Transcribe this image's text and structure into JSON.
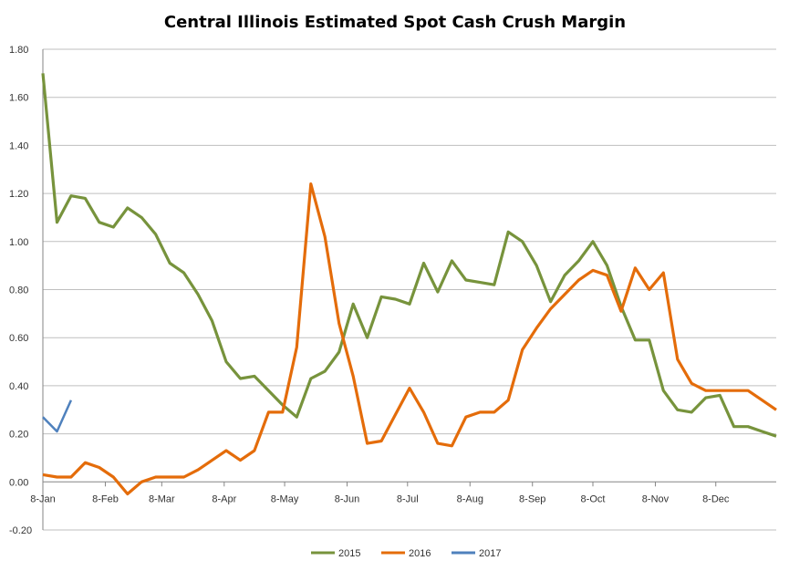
{
  "chart_data": {
    "type": "line",
    "title": "Central Illinois Estimated Spot Cash Crush Margin",
    "xlabel": "",
    "ylabel": "",
    "ylim": [
      -0.2,
      1.8
    ],
    "yticks": [
      "-0.20",
      "0.00",
      "0.20",
      "0.40",
      "0.60",
      "0.80",
      "1.00",
      "1.20",
      "1.40",
      "1.60",
      "1.80"
    ],
    "xticks": [
      {
        "label": "8-Jan",
        "day": 0
      },
      {
        "label": "8-Feb",
        "day": 31
      },
      {
        "label": "8-Mar",
        "day": 59
      },
      {
        "label": "8-Apr",
        "day": 90
      },
      {
        "label": "8-May",
        "day": 120
      },
      {
        "label": "8-Jun",
        "day": 151
      },
      {
        "label": "8-Jul",
        "day": 181
      },
      {
        "label": "8-Aug",
        "day": 212
      },
      {
        "label": "8-Sep",
        "day": 243
      },
      {
        "label": "8-Oct",
        "day": 273
      },
      {
        "label": "8-Nov",
        "day": 304
      },
      {
        "label": "8-Dec",
        "day": 334
      }
    ],
    "x_unit": "weeks since 8-Jan",
    "x_max_weeks": 52,
    "grid": true,
    "legend_position": "bottom",
    "series": [
      {
        "name": "2015",
        "color": "#77933C",
        "values": [
          1.7,
          1.08,
          1.19,
          1.18,
          1.08,
          1.06,
          1.14,
          1.1,
          1.03,
          0.91,
          0.87,
          0.78,
          0.67,
          0.5,
          0.43,
          0.44,
          0.38,
          0.32,
          0.27,
          0.43,
          0.46,
          0.54,
          0.74,
          0.6,
          0.77,
          0.76,
          0.74,
          0.91,
          0.79,
          0.92,
          0.84,
          0.83,
          0.82,
          1.04,
          1.0,
          0.9,
          0.75,
          0.86,
          0.92,
          1.0,
          0.9,
          0.73,
          0.59,
          0.59,
          0.38,
          0.3,
          0.29,
          0.35,
          0.36,
          0.23,
          0.23,
          0.21,
          0.19
        ]
      },
      {
        "name": "2016",
        "color": "#E46C0A",
        "values": [
          0.03,
          0.02,
          0.02,
          0.08,
          0.06,
          0.02,
          -0.05,
          0.0,
          0.02,
          0.02,
          0.02,
          0.05,
          0.09,
          0.13,
          0.09,
          0.13,
          0.29,
          0.29,
          0.56,
          1.24,
          1.02,
          0.66,
          0.44,
          0.16,
          0.17,
          0.28,
          0.39,
          0.29,
          0.16,
          0.15,
          0.27,
          0.29,
          0.29,
          0.34,
          0.55,
          0.64,
          0.72,
          0.78,
          0.84,
          0.88,
          0.86,
          0.71,
          0.89,
          0.8,
          0.87,
          0.51,
          0.41,
          0.38,
          0.38,
          0.38,
          0.38,
          0.34,
          0.3
        ]
      },
      {
        "name": "2017",
        "color": "#4F81BD",
        "values": [
          0.27,
          0.21,
          0.34
        ]
      }
    ]
  }
}
